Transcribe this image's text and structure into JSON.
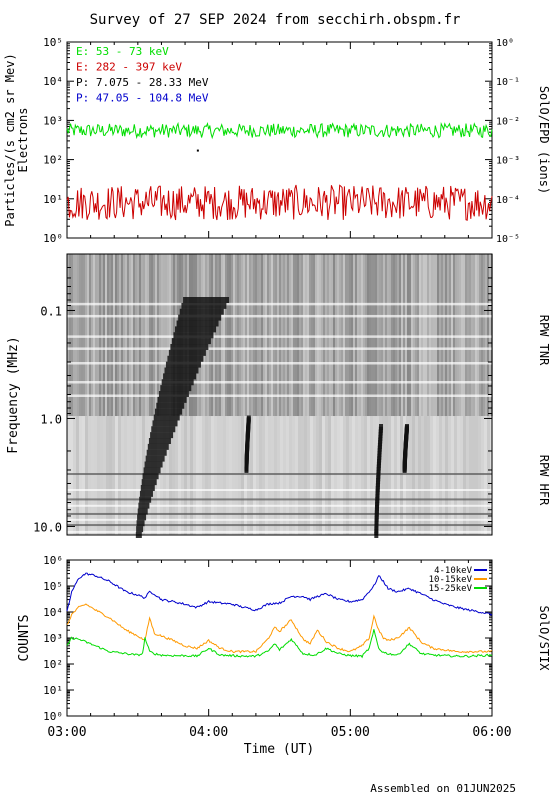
{
  "title": "Survey of 27 SEP 2024 from secchirh.obspm.fr",
  "footer": "Assembled on 01JUN2025",
  "colors": {
    "green": "#00dd00",
    "red": "#cc0000",
    "black": "#000000",
    "blue": "#0000cc",
    "orange": "#ff9900"
  },
  "chart_data": [
    {
      "type": "line",
      "name": "epd",
      "ylabel_left": "Particles/(s cm2 sr Mev)",
      "ylabel_left2": "Electrons",
      "ylabel_right": "SolO/EPD (ions)",
      "left_yscale": "log",
      "left_ylim_exp": [
        0,
        5
      ],
      "left_ticks": [
        "10⁰",
        "10¹",
        "10²",
        "10³",
        "10⁴",
        "10⁵"
      ],
      "right_yscale": "log",
      "right_ylim_exp": [
        -5,
        0
      ],
      "right_ticks": [
        "10⁻⁵",
        "10⁻⁴",
        "10⁻³",
        "10⁻²",
        "10⁻¹",
        "10⁰"
      ],
      "xlim": [
        "03:00",
        "06:00"
      ],
      "legend": [
        {
          "label": "E: 53 - 73 keV",
          "color": "#00dd00"
        },
        {
          "label": "E: 282 - 397 keV",
          "color": "#cc0000"
        },
        {
          "label": "P: 7.075 - 28.33 MeV",
          "color": "#000000"
        },
        {
          "label": "P: 47.05 - 104.8 MeV",
          "color": "#0000cc"
        }
      ],
      "series": [
        {
          "name": "E: 53 - 73 keV",
          "color": "#00dd00",
          "level": 550,
          "spread": 0.18
        },
        {
          "name": "E: 282 - 397 keV",
          "color": "#cc0000",
          "level": 8,
          "spread": 0.45
        }
      ],
      "point": {
        "time": "03:55",
        "value": 170
      }
    },
    {
      "type": "heatmap",
      "name": "rpw",
      "ylabel": "Frequency (MHz)",
      "yscale": "log",
      "ylim": [
        0.03,
        12
      ],
      "yticks": [
        "0.1",
        "1.0",
        "10.0"
      ],
      "label_tnr": "RPW TNR",
      "label_hfr": "RPW HFR",
      "bursts": [
        {
          "start": "03:30",
          "end": "03:50",
          "f_start": 12,
          "f_end": 0.08
        },
        {
          "start": "04:16",
          "end": "04:17",
          "f_start": 3,
          "f_end": 1
        },
        {
          "start": "05:11",
          "end": "05:13",
          "f_start": 12,
          "f_end": 1.2
        },
        {
          "start": "05:23",
          "end": "05:24",
          "f_start": 3,
          "f_end": 1.2
        }
      ]
    },
    {
      "type": "line",
      "name": "stix",
      "ylabel": "COUNTS",
      "ylabel_right": "SolO/STIX",
      "xlabel": "Time (UT)",
      "xticks": [
        "03:00",
        "04:00",
        "05:00",
        "06:00"
      ],
      "yscale": "log",
      "ylim_exp": [
        0,
        6
      ],
      "yticks": [
        "10⁰",
        "10¹",
        "10²",
        "10³",
        "10⁴",
        "10⁵",
        "10⁶"
      ],
      "legend": [
        {
          "label": "4-10keV",
          "color": "#0000cc"
        },
        {
          "label": "10-15keV",
          "color": "#ff9900"
        },
        {
          "label": "15-25keV",
          "color": "#00dd00"
        }
      ],
      "series": [
        {
          "name": "4-10keV",
          "color": "#0000cc",
          "x": [
            0,
            2,
            5,
            8,
            12,
            18,
            25,
            30,
            33,
            35,
            37,
            40,
            45,
            50,
            55,
            60,
            65,
            70,
            75,
            80,
            85,
            88,
            90,
            95,
            100,
            103,
            106,
            110,
            115,
            120,
            125,
            130,
            132,
            134,
            136,
            140,
            145,
            150,
            155,
            160,
            165,
            170,
            175,
            180
          ],
          "y": [
            10000,
            60000,
            200000,
            300000,
            250000,
            150000,
            60000,
            45000,
            35000,
            60000,
            50000,
            30000,
            25000,
            20000,
            15000,
            25000,
            22000,
            20000,
            15000,
            12000,
            20000,
            22000,
            22000,
            40000,
            40000,
            30000,
            40000,
            50000,
            30000,
            25000,
            30000,
            100000,
            250000,
            150000,
            80000,
            60000,
            80000,
            50000,
            30000,
            20000,
            15000,
            12000,
            10000,
            8000
          ]
        },
        {
          "name": "10-15keV",
          "color": "#ff9900",
          "x": [
            0,
            2,
            5,
            8,
            12,
            18,
            25,
            30,
            33,
            35,
            37,
            40,
            45,
            50,
            55,
            60,
            65,
            70,
            75,
            80,
            85,
            88,
            90,
            95,
            100,
            103,
            106,
            110,
            115,
            120,
            125,
            128,
            130,
            132,
            134,
            136,
            140,
            145,
            150,
            155,
            160,
            165,
            170,
            175,
            180
          ],
          "y": [
            3000,
            8000,
            15000,
            20000,
            12000,
            6000,
            2000,
            1200,
            800,
            6000,
            1500,
            1200,
            800,
            500,
            400,
            800,
            400,
            300,
            300,
            300,
            900,
            2500,
            1800,
            5000,
            900,
            600,
            2000,
            700,
            400,
            300,
            500,
            1000,
            7000,
            2000,
            1000,
            800,
            1000,
            2500,
            700,
            400,
            350,
            300,
            300,
            300,
            300
          ]
        },
        {
          "name": "15-25keV",
          "color": "#00dd00",
          "x": [
            0,
            2,
            5,
            8,
            12,
            18,
            25,
            30,
            32,
            33,
            35,
            37,
            40,
            45,
            50,
            55,
            60,
            65,
            70,
            75,
            80,
            85,
            88,
            90,
            95,
            100,
            105,
            110,
            115,
            120,
            125,
            128,
            130,
            132,
            134,
            136,
            140,
            145,
            150,
            155,
            160,
            165,
            170,
            175,
            180
          ],
          "y": [
            500,
            1000,
            900,
            700,
            500,
            300,
            250,
            220,
            250,
            1000,
            300,
            250,
            220,
            210,
            210,
            200,
            400,
            220,
            210,
            200,
            200,
            300,
            600,
            350,
            900,
            250,
            220,
            400,
            250,
            210,
            200,
            400,
            2000,
            400,
            280,
            250,
            220,
            600,
            250,
            220,
            210,
            200,
            200,
            210,
            220
          ]
        }
      ]
    }
  ]
}
